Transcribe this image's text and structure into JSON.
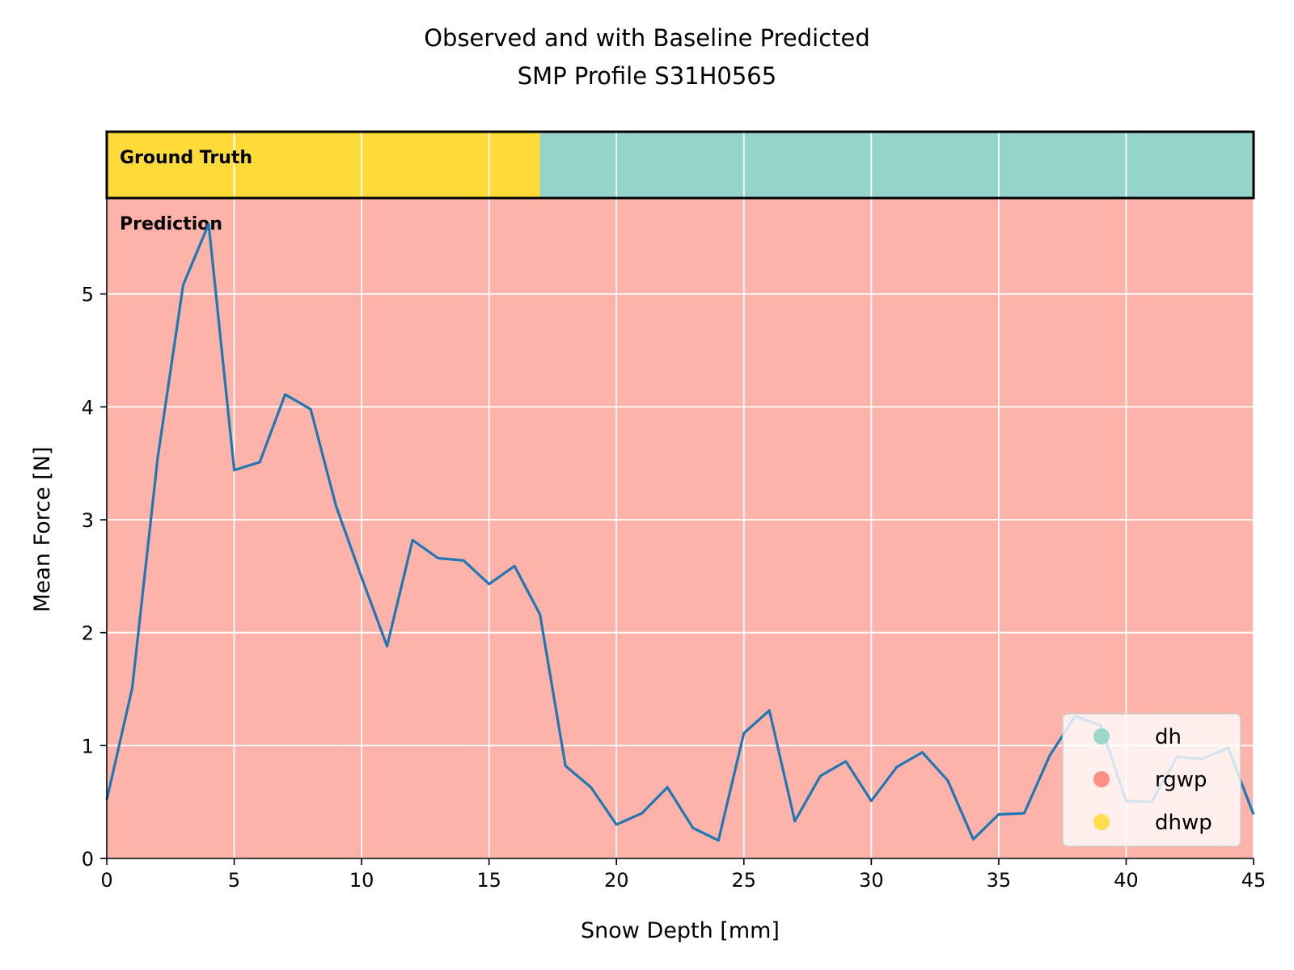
{
  "chart_data": {
    "type": "line",
    "title_line1": "Observed and with Baseline Predicted",
    "title_line2": "SMP Profile S31H0565",
    "xlabel": "Snow Depth [mm]",
    "ylabel": "Mean Force [N]",
    "xlim": [
      0,
      45
    ],
    "ylim": [
      0,
      5.85
    ],
    "xticks": [
      0,
      5,
      10,
      15,
      20,
      25,
      30,
      35,
      40,
      45
    ],
    "yticks": [
      0,
      1,
      2,
      3,
      4,
      5
    ],
    "grid": true,
    "legend_position": "lower-right",
    "ground_truth_label": "Ground Truth",
    "prediction_label": "Prediction",
    "ground_truth_segments": [
      {
        "start": 0,
        "end": 17,
        "class": "dhwp"
      },
      {
        "start": 17,
        "end": 45,
        "class": "dh"
      }
    ],
    "prediction_segments": [
      {
        "start": 0,
        "end": 45,
        "class": "rgwp"
      }
    ],
    "classes": [
      {
        "name": "dh",
        "color": "#8dd3c7"
      },
      {
        "name": "rgwp",
        "color": "#fb8072"
      },
      {
        "name": "dhwp",
        "color": "#ffd92f"
      }
    ],
    "line_color": "#1f77b4",
    "series": [
      {
        "x": [
          0,
          1,
          2,
          3,
          4,
          5,
          6,
          7,
          8,
          9,
          10,
          11,
          12,
          13,
          14,
          15,
          16,
          17,
          18,
          19,
          20,
          21,
          22,
          23,
          24,
          25,
          26,
          27,
          28,
          29,
          30,
          31,
          32,
          33,
          34,
          35,
          36,
          37,
          38,
          39,
          40,
          41,
          42,
          43,
          44,
          45
        ],
        "y": [
          0.52,
          1.51,
          3.55,
          5.08,
          5.62,
          3.44,
          3.51,
          4.11,
          3.98,
          3.12,
          2.49,
          1.88,
          2.82,
          2.66,
          2.64,
          2.43,
          2.59,
          2.16,
          0.82,
          0.63,
          0.3,
          0.4,
          0.63,
          0.27,
          0.16,
          1.11,
          1.31,
          0.33,
          0.73,
          0.86,
          0.51,
          0.81,
          0.94,
          0.69,
          0.17,
          0.39,
          0.4,
          0.91,
          1.26,
          1.18,
          0.51,
          0.5,
          0.9,
          0.88,
          0.98,
          0.39
        ]
      }
    ]
  }
}
